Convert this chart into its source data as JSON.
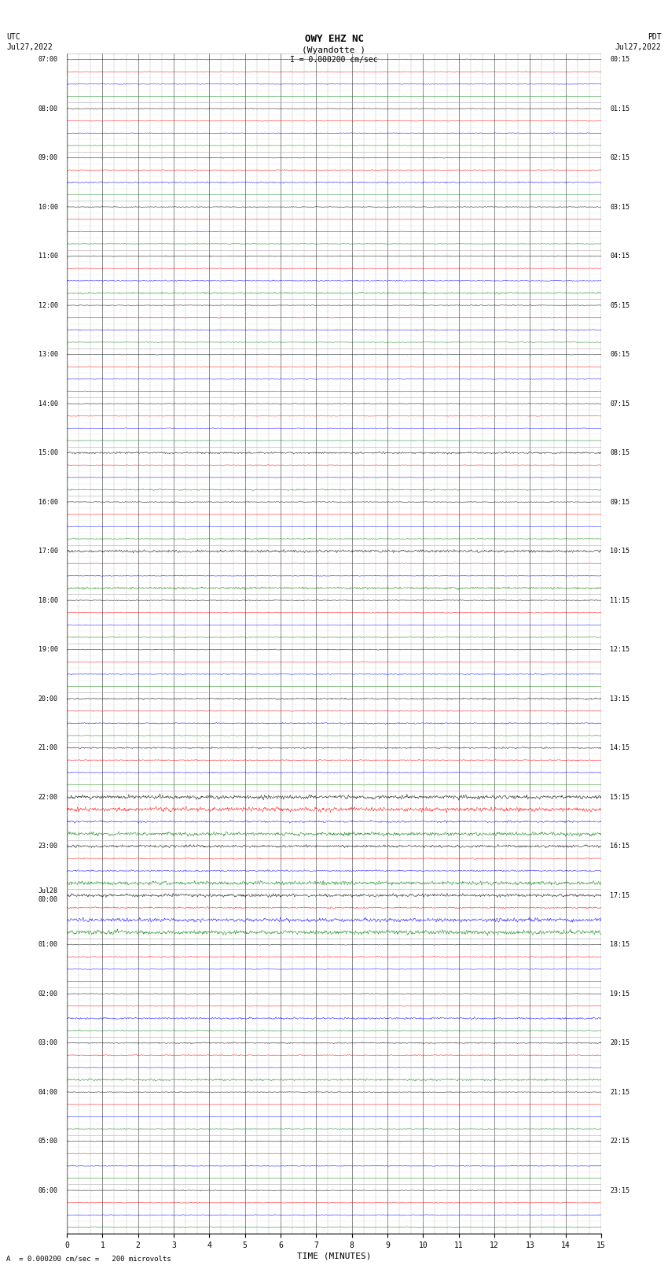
{
  "title_line1": "OWY EHZ NC",
  "title_line2": "(Wyandotte )",
  "scale_text": "I = 0.000200 cm/sec",
  "left_label_top": "UTC",
  "left_label_date": "Jul27,2022",
  "right_label_top": "PDT",
  "right_label_date": "Jul27,2022",
  "bottom_label": "TIME (MINUTES)",
  "footer_text": "A  = 0.000200 cm/sec =   200 microvolts",
  "utc_times": [
    "07:00",
    "08:00",
    "09:00",
    "10:00",
    "11:00",
    "12:00",
    "13:00",
    "14:00",
    "15:00",
    "16:00",
    "17:00",
    "18:00",
    "19:00",
    "20:00",
    "21:00",
    "22:00",
    "23:00",
    "Jul28\n00:00",
    "01:00",
    "02:00",
    "03:00",
    "04:00",
    "05:00",
    "06:00"
  ],
  "pdt_times": [
    "00:15",
    "01:15",
    "02:15",
    "03:15",
    "04:15",
    "05:15",
    "06:15",
    "07:15",
    "08:15",
    "09:15",
    "10:15",
    "11:15",
    "12:15",
    "13:15",
    "14:15",
    "15:15",
    "16:15",
    "17:15",
    "18:15",
    "19:15",
    "20:15",
    "21:15",
    "22:15",
    "23:15"
  ],
  "n_rows": 24,
  "traces_per_row": 4,
  "trace_colors": [
    "black",
    "red",
    "blue",
    "green"
  ],
  "bg_color": "white",
  "grid_color": "#888888",
  "x_ticks": [
    0,
    1,
    2,
    3,
    4,
    5,
    6,
    7,
    8,
    9,
    10,
    11,
    12,
    13,
    14,
    15
  ],
  "x_lim": [
    0,
    15
  ],
  "seed": 42,
  "fig_width": 8.5,
  "fig_height": 16.13,
  "dpi": 100
}
